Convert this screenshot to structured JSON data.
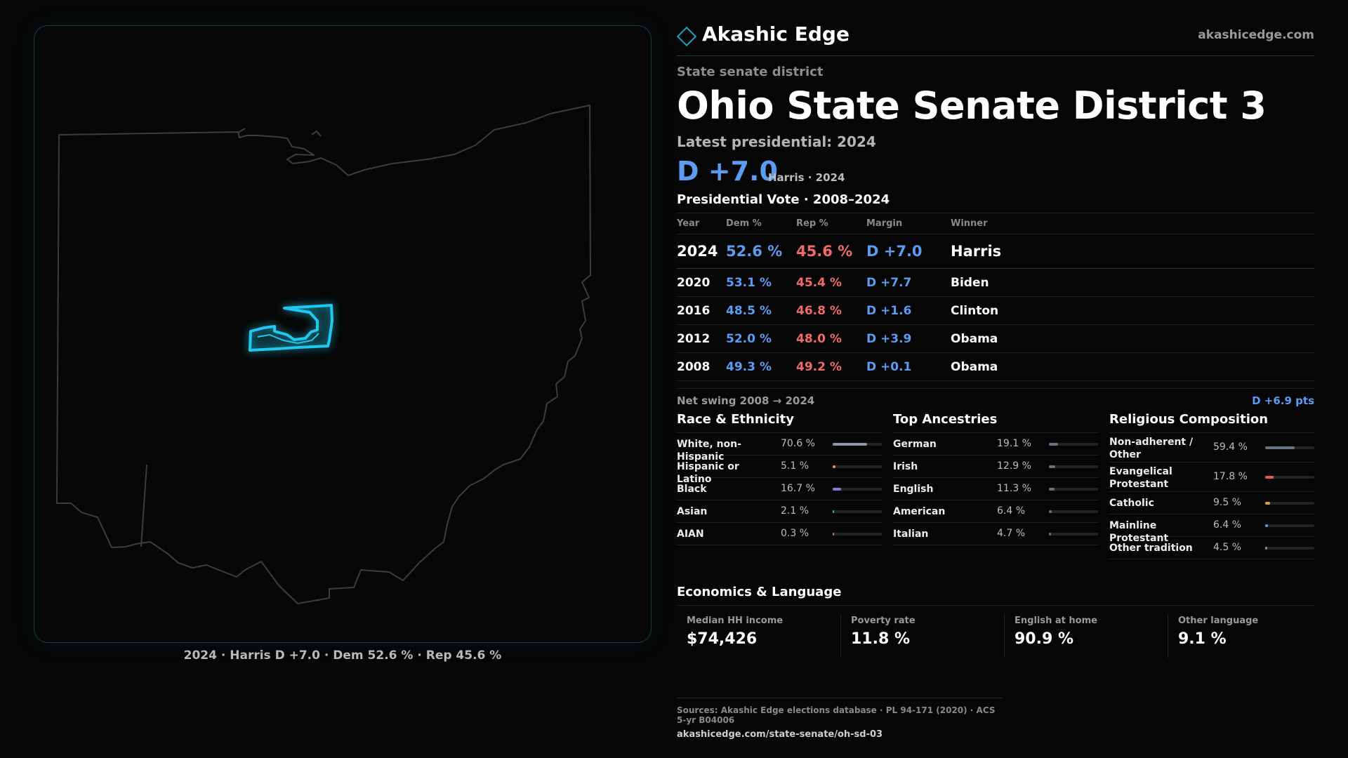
{
  "map": {
    "caption": "2024 · Harris D +7.0 · Dem 52.6 % · Rep 45.6 %"
  },
  "brand": {
    "name": "Akashic Edge",
    "url": "akashicedge.com"
  },
  "district": {
    "kind": "State senate district",
    "title": "Ohio State Senate District 3",
    "latest_label": "Latest presidential: 2024",
    "margin": "D +7.0",
    "margin_sub": "Harris · 2024"
  },
  "votes": {
    "title": "Presidential Vote · 2008–2024",
    "headers": {
      "year": "Year",
      "dem": "Dem %",
      "rep": "Rep %",
      "margin": "Margin",
      "winner": "Winner"
    },
    "rows": [
      {
        "year": "2024",
        "dem": "52.6 %",
        "rep": "45.6 %",
        "margin": "D +7.0",
        "winner": "Harris"
      },
      {
        "year": "2020",
        "dem": "53.1 %",
        "rep": "45.4 %",
        "margin": "D +7.7",
        "winner": "Biden"
      },
      {
        "year": "2016",
        "dem": "48.5 %",
        "rep": "46.8 %",
        "margin": "D +1.6",
        "winner": "Clinton"
      },
      {
        "year": "2012",
        "dem": "52.0 %",
        "rep": "48.0 %",
        "margin": "D +3.9",
        "winner": "Obama"
      },
      {
        "year": "2008",
        "dem": "49.3 %",
        "rep": "49.2 %",
        "margin": "D +0.1",
        "winner": "Obama"
      }
    ],
    "swing_label": "Net swing 2008 → 2024",
    "swing_value": "D +6.9 pts"
  },
  "race": {
    "title": "Race & Ethnicity",
    "items": [
      {
        "label": "White, non-Hispanic",
        "value": "70.6 %",
        "pct": 70.6,
        "color": "#8d96a8"
      },
      {
        "label": "Hispanic or Latino",
        "value": "5.1 %",
        "pct": 5.1,
        "color": "#e0a030"
      },
      {
        "label": "Black",
        "value": "16.7 %",
        "pct": 16.7,
        "color": "#8a78d8"
      },
      {
        "label": "Asian",
        "value": "2.1 %",
        "pct": 2.1,
        "color": "#3bb88a"
      },
      {
        "label": "AIAN",
        "value": "0.3 %",
        "pct": 0.3,
        "color": "#c77a4a"
      }
    ]
  },
  "ancestry": {
    "title": "Top Ancestries",
    "items": [
      {
        "label": "German",
        "value": "19.1 %",
        "pct": 19.1,
        "color": "#6a7180"
      },
      {
        "label": "Irish",
        "value": "12.9 %",
        "pct": 12.9,
        "color": "#6a7180"
      },
      {
        "label": "English",
        "value": "11.3 %",
        "pct": 11.3,
        "color": "#6a7180"
      },
      {
        "label": "American",
        "value": "6.4 %",
        "pct": 6.4,
        "color": "#6a7180"
      },
      {
        "label": "Italian",
        "value": "4.7 %",
        "pct": 4.7,
        "color": "#6a7180"
      }
    ]
  },
  "religion": {
    "title": "Religious Composition",
    "items": [
      {
        "label": "Non-adherent / Other",
        "value": "59.4 %",
        "pct": 59.4,
        "color": "#6a7180"
      },
      {
        "label": "Evangelical Protestant",
        "value": "17.8 %",
        "pct": 17.8,
        "color": "#e05a5a"
      },
      {
        "label": "Catholic",
        "value": "9.5 %",
        "pct": 9.5,
        "color": "#e0a030"
      },
      {
        "label": "Mainline Protestant",
        "value": "6.4 %",
        "pct": 6.4,
        "color": "#5b9cf0"
      },
      {
        "label": "Other tradition",
        "value": "4.5 %",
        "pct": 4.5,
        "color": "#8a8a8a"
      }
    ]
  },
  "economics": {
    "title": "Economics & Language",
    "cards": [
      {
        "label": "Median HH income",
        "value": "$74,426"
      },
      {
        "label": "Poverty rate",
        "value": "11.8 %"
      },
      {
        "label": "English at home",
        "value": "90.9 %"
      },
      {
        "label": "Other language",
        "value": "9.1 %"
      }
    ]
  },
  "sources": {
    "line1": "Sources: Akashic Edge elections database · PL 94-171 (2020) · ACS 5-yr B04006",
    "line2": "akashicedge.com/state-senate/oh-sd-03"
  },
  "colors": {
    "dem": "#5b9cf0",
    "rep": "#f06a6a",
    "district_highlight": "#1ec8ee"
  }
}
